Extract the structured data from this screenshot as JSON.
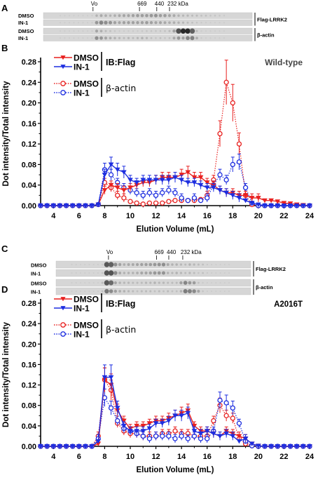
{
  "panels": {
    "a": "A",
    "b": "B",
    "c": "C",
    "d": "D"
  },
  "blots": [
    {
      "markers": [
        {
          "label": "Vo",
          "x": 7.6
        },
        {
          "label": "669",
          "x": 12.7
        },
        {
          "label": "440",
          "x": 14.6
        },
        {
          "label": "232 kDa",
          "x": 16.0
        }
      ],
      "rows": [
        {
          "label": "DMSO"
        },
        {
          "label": "IN-1"
        },
        {
          "label": "DMSO"
        },
        {
          "label": "IN-1"
        }
      ],
      "groups": [
        {
          "label": "Flag-LRRK2"
        },
        {
          "label": "β-actin"
        }
      ]
    },
    {
      "markers": [
        {
          "label": "Vo",
          "x": 8.2
        },
        {
          "label": "669",
          "x": 13.7
        },
        {
          "label": "440",
          "x": 15.1
        },
        {
          "label": "232 kDa",
          "x": 16.7
        }
      ],
      "rows": [
        {
          "label": "DMSO"
        },
        {
          "label": "IN-1"
        },
        {
          "label": "DMSO"
        },
        {
          "label": "IN-1"
        }
      ],
      "groups": [
        {
          "label": "Flag-LRRK2"
        },
        {
          "label": "β-actin"
        }
      ]
    }
  ],
  "legend": {
    "ib_flag": "IB:Flag",
    "beta_actin": "β-actin"
  },
  "colors": {
    "red": "#e8201f",
    "blue": "#1d2ee0"
  },
  "chart_data": [
    {
      "type": "line",
      "title": "Wild-type",
      "xlabel": "Elution Volume (mL)",
      "ylabel": "Dot intensity/Total intensity",
      "xlim": [
        3,
        24
      ],
      "ylim": [
        0,
        0.28
      ],
      "xticks": [
        "4",
        "6",
        "8",
        "10",
        "12",
        "14",
        "16",
        "18",
        "20",
        "22",
        "24"
      ],
      "yticks": [
        "0.00",
        "0.04",
        "0.08",
        "0.12",
        "0.16",
        "0.20",
        "0.24",
        "0.28"
      ],
      "x": [
        3,
        3.5,
        4,
        4.5,
        5,
        5.5,
        6,
        6.5,
        7,
        7.5,
        8,
        8.5,
        9,
        9.5,
        10,
        10.5,
        11,
        11.5,
        12,
        12.5,
        13,
        13.5,
        14,
        14.5,
        15,
        15.5,
        16,
        16.5,
        17,
        17.5,
        18,
        18.5,
        19,
        19.5,
        20,
        20.5,
        21,
        21.5,
        22,
        22.5,
        23,
        23.5,
        24
      ],
      "series": [
        {
          "name": "DMSO",
          "group": "IB:Flag",
          "color": "#e8201f",
          "marker": "triangle-down",
          "filled": true,
          "dashed": false,
          "values": [
            0,
            0,
            0,
            0,
            0,
            0,
            0,
            0,
            0,
            0.002,
            0.03,
            0.04,
            0.035,
            0.03,
            0.035,
            0.04,
            0.045,
            0.045,
            0.05,
            0.055,
            0.055,
            0.055,
            0.06,
            0.065,
            0.055,
            0.055,
            0.045,
            0.04,
            0.03,
            0.025,
            0.025,
            0.02,
            0.02,
            0.015,
            0.015,
            0.01,
            0.01,
            0.008,
            0.005,
            0.004,
            0.002,
            0.001,
            0
          ]
        },
        {
          "name": "IN-1",
          "group": "IB:Flag",
          "color": "#1d2ee0",
          "marker": "triangle-down",
          "filled": true,
          "dashed": false,
          "values": [
            0,
            0,
            0,
            0,
            0,
            0,
            0,
            0,
            0,
            0.002,
            0.06,
            0.08,
            0.07,
            0.065,
            0.05,
            0.045,
            0.05,
            0.05,
            0.05,
            0.05,
            0.05,
            0.055,
            0.05,
            0.045,
            0.045,
            0.04,
            0.035,
            0.035,
            0.03,
            0.025,
            0.02,
            0.015,
            0.01,
            0.005,
            0.002,
            0,
            0,
            0,
            0,
            0,
            0,
            0,
            0
          ]
        },
        {
          "name": "DMSO",
          "group": "β-actin",
          "color": "#e8201f",
          "marker": "circle",
          "filled": false,
          "dashed": true,
          "values": [
            0,
            0,
            0,
            0,
            0,
            0,
            0,
            0,
            0,
            0.002,
            0.045,
            0.035,
            0.02,
            0.015,
            0.008,
            0.005,
            0.003,
            0.005,
            0.005,
            0.005,
            0.008,
            0.01,
            0.01,
            0.01,
            0.01,
            0.012,
            0.02,
            0.05,
            0.14,
            0.24,
            0.2,
            0.12,
            0.02,
            0.002,
            0,
            0,
            0,
            0,
            0,
            0,
            0,
            0,
            0
          ]
        },
        {
          "name": "IN-1",
          "group": "β-actin",
          "color": "#1d2ee0",
          "marker": "circle",
          "filled": false,
          "dashed": true,
          "values": [
            0,
            0,
            0,
            0,
            0,
            0,
            0,
            0,
            0,
            0.002,
            0.07,
            0.06,
            0.045,
            0.035,
            0.03,
            0.025,
            0.02,
            0.025,
            0.02,
            0.025,
            0.03,
            0.025,
            0.015,
            0.01,
            0.015,
            0.01,
            0.015,
            0.04,
            0.06,
            0.05,
            0.08,
            0.085,
            0.035,
            0.005,
            0,
            0,
            0,
            0,
            0,
            0,
            0,
            0,
            0
          ]
        }
      ]
    },
    {
      "type": "line",
      "title": "A2016T",
      "xlabel": "Elution Volume (mL)",
      "ylabel": "Dot intensity/Total intensity",
      "xlim": [
        3,
        24
      ],
      "ylim": [
        0,
        0.28
      ],
      "xticks": [
        "4",
        "6",
        "8",
        "10",
        "12",
        "14",
        "16",
        "18",
        "20",
        "22",
        "24"
      ],
      "yticks": [
        "0.00",
        "0.04",
        "0.08",
        "0.12",
        "0.16",
        "0.20",
        "0.24",
        "0.28"
      ],
      "x": [
        3,
        3.5,
        4,
        4.5,
        5,
        5.5,
        6,
        6.5,
        7,
        7.5,
        8,
        8.5,
        9,
        9.5,
        10,
        10.5,
        11,
        11.5,
        12,
        12.5,
        13,
        13.5,
        14,
        14.5,
        15,
        15.5,
        16,
        16.5,
        17,
        17.5,
        18,
        18.5,
        19,
        19.5,
        20,
        20.5,
        21,
        21.5,
        22,
        22.5,
        23,
        23.5,
        24
      ],
      "series": [
        {
          "name": "DMSO",
          "group": "IB:Flag",
          "color": "#e8201f",
          "marker": "triangle-down",
          "filled": true,
          "dashed": false,
          "values": [
            0,
            0,
            0,
            0,
            0,
            0,
            0,
            0,
            0,
            0.005,
            0.13,
            0.12,
            0.07,
            0.05,
            0.035,
            0.04,
            0.04,
            0.045,
            0.05,
            0.05,
            0.055,
            0.06,
            0.065,
            0.07,
            0.04,
            0.03,
            0.03,
            0.025,
            0.02,
            0.03,
            0.025,
            0.02,
            0.015,
            0.005,
            0.001,
            0,
            0,
            0,
            0,
            0,
            0,
            0,
            0
          ]
        },
        {
          "name": "IN-1",
          "group": "IB:Flag",
          "color": "#1d2ee0",
          "marker": "triangle-down",
          "filled": true,
          "dashed": false,
          "values": [
            0,
            0,
            0,
            0,
            0,
            0,
            0,
            0,
            0,
            0.01,
            0.135,
            0.135,
            0.075,
            0.04,
            0.03,
            0.03,
            0.03,
            0.035,
            0.045,
            0.045,
            0.05,
            0.06,
            0.06,
            0.065,
            0.03,
            0.025,
            0.03,
            0.025,
            0.02,
            0.025,
            0.02,
            0.01,
            0.015,
            0.005,
            0.001,
            0,
            0,
            0,
            0,
            0,
            0,
            0,
            0
          ]
        },
        {
          "name": "DMSO",
          "group": "β-actin",
          "color": "#e8201f",
          "marker": "circle",
          "filled": false,
          "dashed": true,
          "values": [
            0,
            0,
            0,
            0,
            0,
            0,
            0,
            0,
            0,
            0.02,
            0.13,
            0.11,
            0.045,
            0.03,
            0.025,
            0.025,
            0.02,
            0.02,
            0.02,
            0.025,
            0.025,
            0.03,
            0.025,
            0.025,
            0.02,
            0.02,
            0.02,
            0.05,
            0.08,
            0.06,
            0.055,
            0.015,
            0.005,
            0.001,
            0,
            0,
            0,
            0,
            0,
            0,
            0,
            0,
            0
          ]
        },
        {
          "name": "IN-1",
          "group": "β-actin",
          "color": "#1d2ee0",
          "marker": "circle",
          "filled": false,
          "dashed": true,
          "values": [
            0,
            0,
            0,
            0,
            0,
            0,
            0,
            0,
            0,
            0.015,
            0.095,
            0.075,
            0.05,
            0.035,
            0.03,
            0.025,
            0.02,
            0.015,
            0.02,
            0.02,
            0.02,
            0.015,
            0.02,
            0.015,
            0.02,
            0.015,
            0.015,
            0.03,
            0.09,
            0.085,
            0.075,
            0.045,
            0.01,
            0.001,
            0,
            0,
            0,
            0,
            0,
            0,
            0,
            0,
            0
          ]
        }
      ]
    }
  ]
}
